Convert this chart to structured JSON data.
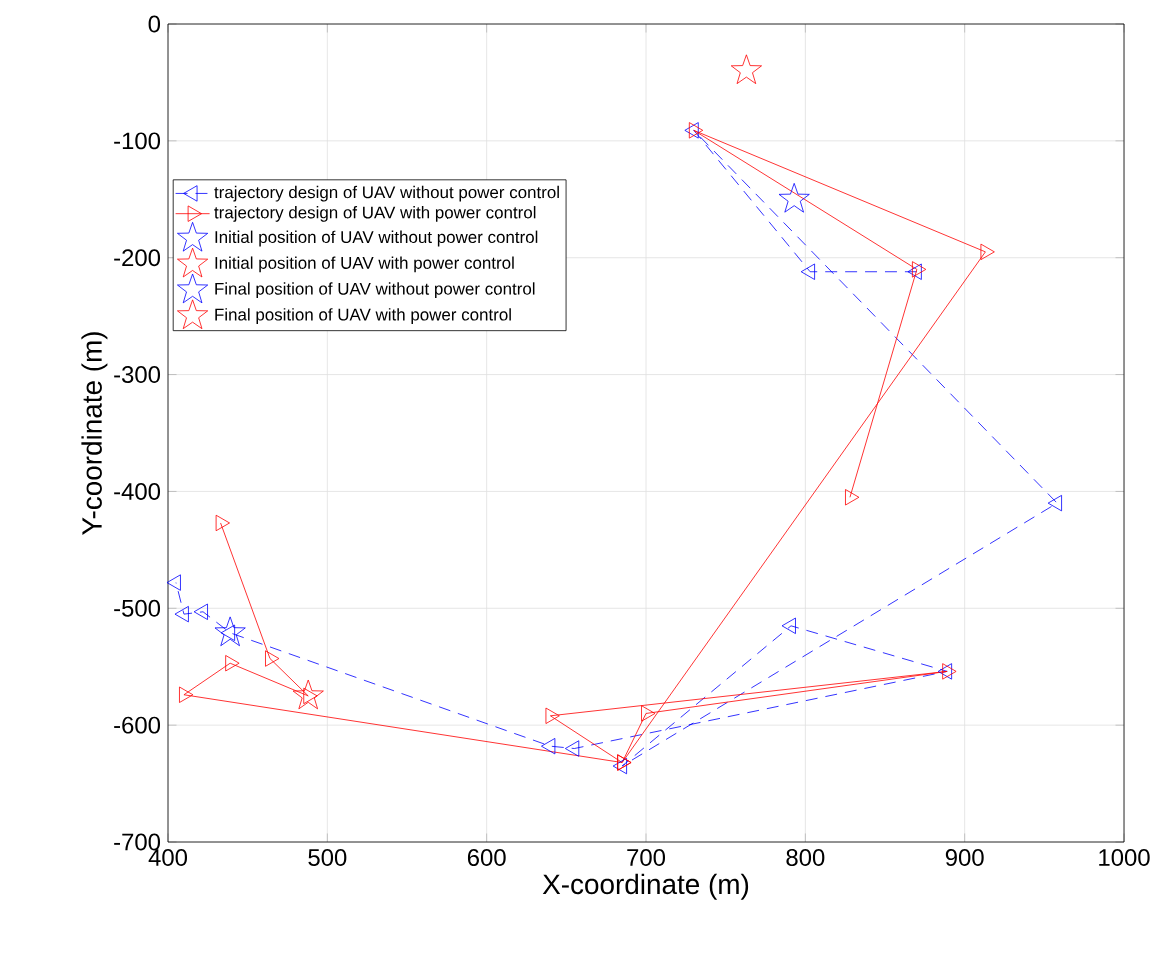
{
  "chart_data": {
    "type": "line",
    "xlabel": "X-coordinate (m)",
    "ylabel": "Y-coordinate (m)",
    "xlim": [
      400,
      1000
    ],
    "ylim": [
      -700,
      0
    ],
    "xticks": [
      400,
      500,
      600,
      700,
      800,
      900,
      1000
    ],
    "yticks": [
      -700,
      -600,
      -500,
      -400,
      -300,
      -200,
      -100,
      0
    ],
    "grid": true,
    "legend": "top left",
    "series": [
      {
        "name": "trajectory design of UAV without power control",
        "color": "#0000ff",
        "marker": "triangle",
        "line_style": "dashed",
        "x": [
          870,
          803,
          730,
          958,
          685,
          791,
          889,
          655,
          640,
          439,
          422,
          410,
          405
        ],
        "values": [
          -212,
          -212,
          -91,
          -410,
          -635,
          -515,
          -554,
          -620,
          -618,
          -521,
          -503,
          -505,
          -478
        ]
      },
      {
        "name": "trajectory design of UAV with power control",
        "color": "#ff0000",
        "marker": "triangle",
        "line_style": "solid",
        "x": [
          828,
          870,
          730,
          913,
          685,
          700,
          889,
          640,
          685,
          410,
          439,
          488,
          464,
          433
        ],
        "values": [
          -405,
          -210,
          -91,
          -195,
          -632,
          -590,
          -554,
          -592,
          -632,
          -574,
          -547,
          -575,
          -543,
          -427
        ]
      },
      {
        "name": "Initial position of UAV without power control",
        "color": "#0000ff",
        "type": "scatter",
        "marker": "star",
        "x": [
          793
        ],
        "values": [
          -150
        ]
      },
      {
        "name": "Initial position of UAV with power control",
        "color": "#ff0000",
        "type": "scatter",
        "marker": "star",
        "x": [
          763
        ],
        "values": [
          -40
        ]
      },
      {
        "name": "Final position of UAV without power control",
        "color": "#0000ff",
        "type": "scatter",
        "marker": "star",
        "x": [
          439
        ],
        "values": [
          -521
        ]
      },
      {
        "name": "Final position of UAV with power control",
        "color": "#ff0000",
        "type": "scatter",
        "marker": "star",
        "x": [
          488
        ],
        "values": [
          -575
        ]
      }
    ]
  }
}
